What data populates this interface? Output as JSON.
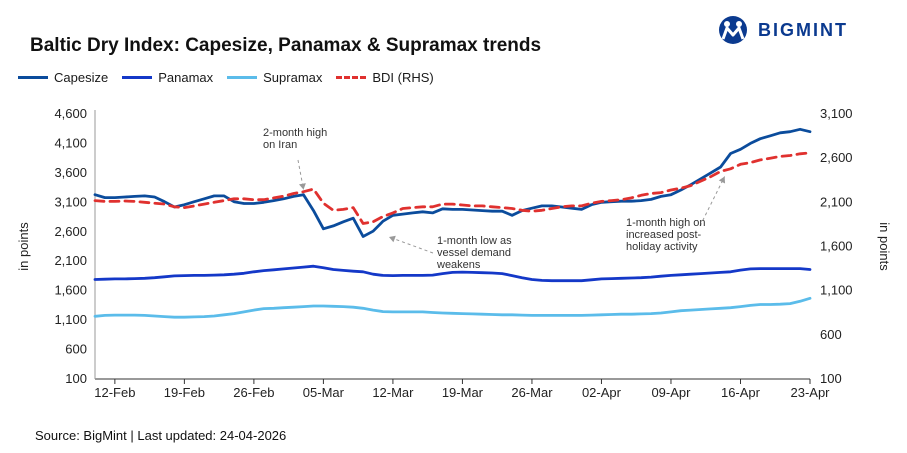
{
  "title": "Baltic Dry Index: Capesize, Panamax & Supramax trends",
  "brand": {
    "name": "BIGMINT",
    "icon": "bigmint-logo-icon",
    "color": "#0b3a8f"
  },
  "source": "Source: BigMint | Last updated: 24-04-2026",
  "legend": [
    {
      "name": "Capesize",
      "color": "#0b4c9c",
      "style": "solid"
    },
    {
      "name": "Panamax",
      "color": "#1438c8",
      "style": "solid"
    },
    {
      "name": "Supramax",
      "color": "#5bbcea",
      "style": "solid"
    },
    {
      "name": "BDI (RHS)",
      "color": "#e0312f",
      "style": "dashed"
    }
  ],
  "chart_data": {
    "type": "line",
    "title": "Baltic Dry Index: Capesize, Panamax & Supramax trends",
    "ylabel": "in points",
    "y2label": "in points",
    "ylim": [
      100,
      4600
    ],
    "y2lim": [
      100,
      3100
    ],
    "yticks": [
      "100",
      "600",
      "1,100",
      "1,600",
      "2,100",
      "2,600",
      "3,100",
      "3,600",
      "4,100",
      "4,600"
    ],
    "y2ticks": [
      "100",
      "600",
      "1,100",
      "1,600",
      "2,100",
      "2,600",
      "3,100"
    ],
    "yticks_values": [
      100,
      600,
      1100,
      1600,
      2100,
      2600,
      3100,
      3600,
      4100,
      4600
    ],
    "y2ticks_values": [
      100,
      600,
      1100,
      1600,
      2100,
      2600,
      3100
    ],
    "xticks": [
      "12-Feb",
      "19-Feb",
      "26-Feb",
      "05-Mar",
      "12-Mar",
      "19-Mar",
      "26-Mar",
      "02-Apr",
      "09-Apr",
      "16-Apr",
      "23-Apr"
    ],
    "xrange": [
      0,
      72
    ],
    "xticks_positions": [
      2,
      9,
      16,
      23,
      30,
      37,
      44,
      51,
      58,
      65,
      72
    ],
    "series": [
      {
        "name": "Capesize",
        "axis": "left",
        "x": [
          0,
          1,
          2,
          3,
          4,
          5,
          6,
          7,
          8,
          9,
          10,
          11,
          12,
          13,
          14,
          15,
          16,
          17,
          18,
          19,
          20,
          21,
          22,
          23,
          24,
          25,
          26,
          27,
          28,
          29,
          30,
          31,
          32,
          33,
          34,
          35,
          36,
          37,
          38,
          39,
          40,
          41,
          42,
          43,
          44,
          45,
          46,
          47,
          48,
          49,
          50,
          51,
          52,
          53,
          54,
          55,
          56,
          57,
          58,
          59,
          60,
          61,
          62,
          63,
          64,
          65,
          66,
          67,
          68,
          69,
          70,
          71,
          72
        ],
        "values": [
          3230,
          3180,
          3180,
          3190,
          3200,
          3210,
          3190,
          3110,
          3020,
          3060,
          3110,
          3160,
          3210,
          3210,
          3110,
          3080,
          3080,
          3100,
          3130,
          3160,
          3200,
          3230,
          2960,
          2650,
          2700,
          2770,
          2830,
          2520,
          2610,
          2780,
          2880,
          2900,
          2920,
          2940,
          2920,
          2990,
          2980,
          2980,
          2970,
          2960,
          2950,
          2950,
          2880,
          2960,
          3000,
          3040,
          3040,
          3020,
          3000,
          2980,
          3060,
          3100,
          3110,
          3120,
          3120,
          3130,
          3150,
          3200,
          3230,
          3310,
          3400,
          3500,
          3600,
          3700,
          3930,
          4000,
          4100,
          4180,
          4230,
          4280,
          4300,
          4340,
          4300
        ]
      },
      {
        "name": "Panamax",
        "axis": "left",
        "x": [
          0,
          1,
          2,
          3,
          4,
          5,
          6,
          7,
          8,
          9,
          10,
          11,
          12,
          13,
          14,
          15,
          16,
          17,
          18,
          19,
          20,
          21,
          22,
          23,
          24,
          25,
          26,
          27,
          28,
          29,
          30,
          31,
          32,
          33,
          34,
          35,
          36,
          37,
          38,
          39,
          40,
          41,
          42,
          43,
          44,
          45,
          46,
          47,
          48,
          49,
          50,
          51,
          52,
          53,
          54,
          55,
          56,
          57,
          58,
          59,
          60,
          61,
          62,
          63,
          64,
          65,
          66,
          67,
          68,
          69,
          70,
          71,
          72
        ],
        "values": [
          1790,
          1795,
          1800,
          1800,
          1805,
          1810,
          1820,
          1835,
          1850,
          1855,
          1860,
          1860,
          1865,
          1870,
          1880,
          1895,
          1920,
          1940,
          1955,
          1970,
          1985,
          2000,
          2015,
          1990,
          1960,
          1945,
          1930,
          1920,
          1880,
          1860,
          1855,
          1860,
          1860,
          1860,
          1865,
          1890,
          1910,
          1915,
          1910,
          1905,
          1900,
          1890,
          1855,
          1820,
          1790,
          1775,
          1770,
          1770,
          1770,
          1770,
          1785,
          1800,
          1805,
          1810,
          1815,
          1820,
          1830,
          1845,
          1860,
          1870,
          1880,
          1890,
          1900,
          1910,
          1920,
          1950,
          1970,
          1975,
          1975,
          1975,
          1975,
          1975,
          1960
        ]
      },
      {
        "name": "Supramax",
        "axis": "left",
        "x": [
          0,
          1,
          2,
          3,
          4,
          5,
          6,
          7,
          8,
          9,
          10,
          11,
          12,
          13,
          14,
          15,
          16,
          17,
          18,
          19,
          20,
          21,
          22,
          23,
          24,
          25,
          26,
          27,
          28,
          29,
          30,
          31,
          32,
          33,
          34,
          35,
          36,
          37,
          38,
          39,
          40,
          41,
          42,
          43,
          44,
          45,
          46,
          47,
          48,
          49,
          50,
          51,
          52,
          53,
          54,
          55,
          56,
          57,
          58,
          59,
          60,
          61,
          62,
          63,
          64,
          65,
          66,
          67,
          68,
          69,
          70,
          71,
          72
        ],
        "values": [
          1165,
          1180,
          1185,
          1185,
          1185,
          1180,
          1170,
          1160,
          1150,
          1150,
          1155,
          1160,
          1170,
          1190,
          1210,
          1240,
          1270,
          1295,
          1300,
          1310,
          1320,
          1330,
          1340,
          1340,
          1335,
          1330,
          1320,
          1300,
          1270,
          1245,
          1240,
          1240,
          1240,
          1240,
          1230,
          1220,
          1215,
          1210,
          1205,
          1200,
          1195,
          1190,
          1190,
          1185,
          1180,
          1180,
          1180,
          1180,
          1180,
          1180,
          1185,
          1190,
          1195,
          1200,
          1200,
          1205,
          1210,
          1220,
          1240,
          1260,
          1270,
          1280,
          1290,
          1300,
          1310,
          1330,
          1350,
          1365,
          1365,
          1370,
          1380,
          1420,
          1470
        ]
      },
      {
        "name": "BDI (RHS)",
        "axis": "right",
        "x": [
          0,
          1,
          2,
          3,
          4,
          5,
          6,
          7,
          8,
          9,
          10,
          11,
          12,
          13,
          14,
          15,
          16,
          17,
          18,
          19,
          20,
          21,
          22,
          23,
          24,
          25,
          26,
          27,
          28,
          29,
          30,
          31,
          32,
          33,
          34,
          35,
          36,
          37,
          38,
          39,
          40,
          41,
          42,
          43,
          44,
          45,
          46,
          47,
          48,
          49,
          50,
          51,
          52,
          53,
          54,
          55,
          56,
          57,
          58,
          59,
          60,
          61,
          62,
          63,
          64,
          65,
          66,
          67,
          68,
          69,
          70,
          71,
          72
        ],
        "values": [
          2120,
          2110,
          2110,
          2115,
          2110,
          2100,
          2090,
          2080,
          2050,
          2040,
          2060,
          2080,
          2100,
          2120,
          2140,
          2140,
          2130,
          2130,
          2150,
          2170,
          2200,
          2220,
          2250,
          2090,
          2010,
          2020,
          2040,
          1860,
          1880,
          1940,
          1980,
          2030,
          2040,
          2050,
          2050,
          2080,
          2080,
          2070,
          2060,
          2060,
          2050,
          2040,
          2030,
          2010,
          2000,
          2010,
          2030,
          2050,
          2060,
          2060,
          2090,
          2110,
          2120,
          2130,
          2150,
          2180,
          2200,
          2210,
          2240,
          2260,
          2290,
          2340,
          2390,
          2450,
          2480,
          2530,
          2550,
          2580,
          2600,
          2620,
          2630,
          2650,
          2660
        ]
      }
    ],
    "annotations": [
      {
        "text": [
          "2-month high",
          "on Iran"
        ],
        "point": [
          21,
          3230
        ],
        "axis": "left"
      },
      {
        "text": [
          "1-month low as",
          "vessel demand",
          "weakens"
        ],
        "point": [
          29,
          2580
        ],
        "axis": "left"
      },
      {
        "text": [
          "1-month high on",
          "increased post-",
          "holiday activity"
        ],
        "point": [
          63,
          3640
        ],
        "axis": "left"
      }
    ]
  }
}
